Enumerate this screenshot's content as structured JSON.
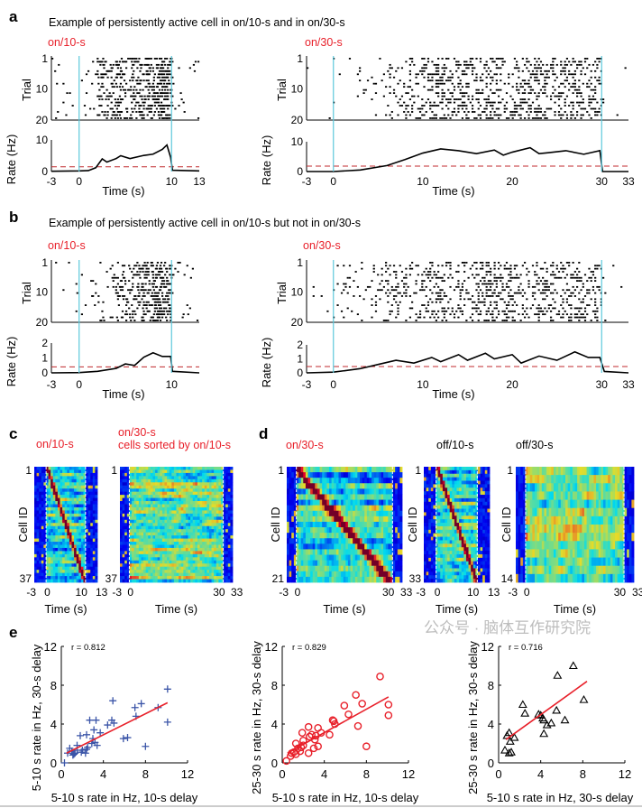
{
  "panel_a": {
    "label": "a",
    "title": "Example of persistently active cell in on/10-s and in on/30-s",
    "left_condition": "on/10-s",
    "right_condition": "on/30-s"
  },
  "panel_b": {
    "label": "b",
    "title": "Example of persistently active cell in on/10-s but not in on/30-s",
    "left_condition": "on/10-s",
    "right_condition": "on/30-s"
  },
  "panel_c": {
    "label": "c",
    "left_condition": "on/10-s",
    "right_condition_line1": "on/30-s",
    "right_condition_line2": "cells sorted by on/10-s"
  },
  "panel_d": {
    "label": "d",
    "cond1": "on/30-s",
    "cond2": "off/10-s",
    "cond3": "off/30-s"
  },
  "panel_e": {
    "label": "e"
  },
  "axis_text": {
    "trial": "Trial",
    "rate": "Rate (Hz)",
    "time": "Time (s)",
    "cell_id": "Cell ID"
  },
  "colors": {
    "event_line": "#5bc8dc",
    "threshold": "#c0282d",
    "condition_label": "#e8202a",
    "scatter1": "#3b55a8",
    "scatter2": "#e8202a",
    "scatter3": "#000000",
    "fit_line": "#e8202a"
  },
  "watermark": "公众号 · 脑体互作研究院",
  "chart_data": [
    {
      "id": "a-left",
      "type": "raster+line",
      "trial_ticks": [
        "1",
        "10",
        "20"
      ],
      "xticks": [
        "-3",
        "0",
        "10",
        "13"
      ],
      "xlim": [
        -3,
        13
      ],
      "ylim": [
        0,
        10
      ],
      "yticks": [
        "0",
        "10"
      ],
      "event_times": [
        0,
        10
      ],
      "threshold": 1.5,
      "rate": [
        [
          -3,
          0.1
        ],
        [
          0,
          0.2
        ],
        [
          1,
          0.3
        ],
        [
          1.8,
          1.2
        ],
        [
          2.5,
          4
        ],
        [
          3,
          3
        ],
        [
          4,
          4.1
        ],
        [
          4.5,
          5
        ],
        [
          5.5,
          4.1
        ],
        [
          7,
          5.1
        ],
        [
          8,
          5.5
        ],
        [
          9,
          7
        ],
        [
          9.5,
          8.4
        ],
        [
          9.9,
          4.5
        ],
        [
          10.1,
          0.4
        ],
        [
          13,
          0.2
        ]
      ]
    },
    {
      "id": "a-right",
      "type": "raster+line",
      "trial_ticks": [
        "1",
        "10",
        "20"
      ],
      "xticks": [
        "-3",
        "0",
        "10",
        "20",
        "30",
        "33"
      ],
      "xlim": [
        -3,
        33
      ],
      "ylim": [
        0,
        10
      ],
      "yticks": [
        "0",
        "10"
      ],
      "event_times": [
        0,
        30
      ],
      "threshold": 1.8,
      "rate": [
        [
          -3,
          0
        ],
        [
          0,
          0
        ],
        [
          3,
          0.5
        ],
        [
          6,
          2
        ],
        [
          8,
          4
        ],
        [
          10,
          6.2
        ],
        [
          12,
          7.6
        ],
        [
          14,
          7
        ],
        [
          16,
          6
        ],
        [
          18,
          7.2
        ],
        [
          19,
          5.5
        ],
        [
          20,
          6.5
        ],
        [
          22,
          8
        ],
        [
          23,
          6
        ],
        [
          24,
          6.3
        ],
        [
          26,
          7
        ],
        [
          28,
          5.8
        ],
        [
          29.8,
          7
        ],
        [
          30.1,
          0
        ],
        [
          33,
          0
        ]
      ]
    },
    {
      "id": "b-left",
      "type": "raster+line",
      "trial_ticks": [
        "1",
        "10",
        "20"
      ],
      "xticks": [
        "-3",
        "0",
        "10"
      ],
      "xlim": [
        -3,
        13
      ],
      "ylim": [
        0,
        2
      ],
      "yticks": [
        "0",
        "1",
        "2"
      ],
      "event_times": [
        0,
        10
      ],
      "threshold": 0.4,
      "rate": [
        [
          -3,
          0
        ],
        [
          0,
          0.02
        ],
        [
          2,
          0.1
        ],
        [
          4,
          0.3
        ],
        [
          5,
          0.6
        ],
        [
          6,
          0.5
        ],
        [
          7,
          1.05
        ],
        [
          8,
          1.35
        ],
        [
          9,
          1.1
        ],
        [
          9.9,
          1.1
        ],
        [
          10.1,
          0.1
        ],
        [
          13,
          0
        ]
      ]
    },
    {
      "id": "b-right",
      "type": "raster+line",
      "trial_ticks": [
        "1",
        "10",
        "20"
      ],
      "xticks": [
        "-3",
        "0",
        "10",
        "20",
        "30",
        "33"
      ],
      "xlim": [
        -3,
        33
      ],
      "ylim": [
        0,
        2
      ],
      "yticks": [
        "0",
        "1",
        "2"
      ],
      "event_times": [
        0,
        30
      ],
      "threshold": 0.45,
      "rate": [
        [
          -3,
          0
        ],
        [
          0,
          0.05
        ],
        [
          3,
          0.3
        ],
        [
          5,
          0.6
        ],
        [
          7,
          0.9
        ],
        [
          9,
          0.7
        ],
        [
          11,
          1.1
        ],
        [
          12,
          0.8
        ],
        [
          14,
          1.3
        ],
        [
          15,
          0.9
        ],
        [
          17,
          1.4
        ],
        [
          18,
          1.0
        ],
        [
          20,
          1.3
        ],
        [
          21,
          0.7
        ],
        [
          23,
          1.2
        ],
        [
          25,
          0.9
        ],
        [
          27,
          1.5
        ],
        [
          28.5,
          1.1
        ],
        [
          29.8,
          1.1
        ],
        [
          30.3,
          0.1
        ],
        [
          33,
          0
        ]
      ]
    },
    {
      "id": "c-left",
      "type": "heatmap",
      "cells": 37,
      "yticks": [
        "1",
        "37"
      ],
      "xticks": [
        "-3",
        "0",
        "10",
        "13"
      ],
      "xlim": [
        -3,
        13
      ]
    },
    {
      "id": "c-right",
      "type": "heatmap",
      "cells": 37,
      "yticks": [
        "1",
        "37"
      ],
      "xticks": [
        "-3",
        "0",
        "30",
        "33"
      ],
      "xlim": [
        -3,
        33
      ]
    },
    {
      "id": "d-1",
      "type": "heatmap",
      "cells": 21,
      "yticks": [
        "1",
        "21"
      ],
      "xticks": [
        "-3",
        "0",
        "30",
        "33"
      ],
      "xlim": [
        -3,
        33
      ]
    },
    {
      "id": "d-2",
      "type": "heatmap",
      "cells": 33,
      "yticks": [
        "1",
        "33"
      ],
      "xticks": [
        "-3",
        "0",
        "10",
        "13"
      ],
      "xlim": [
        -3,
        13
      ]
    },
    {
      "id": "d-3",
      "type": "heatmap",
      "cells": 14,
      "yticks": [
        "1",
        "14"
      ],
      "xticks": [
        "-3",
        "0",
        "30",
        "33"
      ],
      "xlim": [
        -3,
        33
      ]
    },
    {
      "id": "e-1",
      "type": "scatter",
      "marker": "plus",
      "r_text": "r = 0.812",
      "xlabel": "5-10 s rate in Hz, 10-s delay",
      "ylabel": "5-10 s rate in Hz, 30-s delay",
      "xlim": [
        0,
        12
      ],
      "ylim": [
        0,
        12
      ],
      "ticks": [
        "0",
        "4",
        "8",
        "12"
      ],
      "fit": [
        [
          0.5,
          1.0
        ],
        [
          10.1,
          6.2
        ]
      ],
      "points": [
        [
          0.3,
          0
        ],
        [
          0.6,
          1
        ],
        [
          0.8,
          1.5
        ],
        [
          1,
          1.2
        ],
        [
          1.1,
          0.8
        ],
        [
          1.2,
          0.9
        ],
        [
          1.3,
          1
        ],
        [
          1.5,
          1.3
        ],
        [
          1.5,
          1.8
        ],
        [
          1.8,
          2.8
        ],
        [
          1.9,
          1.1
        ],
        [
          2,
          1.3
        ],
        [
          2.3,
          1
        ],
        [
          2.4,
          2.9
        ],
        [
          2.4,
          1.4
        ],
        [
          2.5,
          1.6
        ],
        [
          2.7,
          4.4
        ],
        [
          2.9,
          2
        ],
        [
          3,
          2.5
        ],
        [
          3.1,
          3.4
        ],
        [
          3.2,
          2.1
        ],
        [
          3.3,
          4.4
        ],
        [
          3.4,
          1.8
        ],
        [
          3.7,
          3.1
        ],
        [
          4.4,
          3.9
        ],
        [
          4.8,
          4.4
        ],
        [
          4.9,
          6.4
        ],
        [
          5,
          4.1
        ],
        [
          5.9,
          2.5
        ],
        [
          6.3,
          2.6
        ],
        [
          7,
          5.7
        ],
        [
          7.1,
          4.8
        ],
        [
          7.6,
          6.1
        ],
        [
          8,
          1.7
        ],
        [
          9.2,
          5.7
        ],
        [
          10.1,
          7.6
        ],
        [
          10.1,
          4.2
        ]
      ]
    },
    {
      "id": "e-2",
      "type": "scatter",
      "marker": "circle",
      "r_text": "r = 0.829",
      "xlabel": "5-10 s rate in Hz, 10-s delay",
      "ylabel": "25-30 s rate in Hz, 30-s delay",
      "xlim": [
        0,
        12
      ],
      "ylim": [
        0,
        12
      ],
      "ticks": [
        "0",
        "4",
        "8",
        "12"
      ],
      "fit": [
        [
          0.5,
          1.0
        ],
        [
          10.1,
          6.8
        ]
      ],
      "points": [
        [
          0.4,
          0.2
        ],
        [
          0.8,
          0.7
        ],
        [
          0.9,
          1
        ],
        [
          1.1,
          1.1
        ],
        [
          1.3,
          0.9
        ],
        [
          1.3,
          2
        ],
        [
          1.5,
          1.5
        ],
        [
          1.7,
          1.2
        ],
        [
          1.8,
          1.6
        ],
        [
          1.9,
          3.1
        ],
        [
          2,
          2.3
        ],
        [
          2,
          1.8
        ],
        [
          2.5,
          1
        ],
        [
          2.5,
          3.7
        ],
        [
          2.6,
          2.7
        ],
        [
          2.8,
          2.9
        ],
        [
          3,
          1.5
        ],
        [
          3.1,
          2.4
        ],
        [
          3.2,
          2.8
        ],
        [
          3.4,
          1.7
        ],
        [
          3.4,
          3.6
        ],
        [
          3.7,
          3.1
        ],
        [
          4.5,
          2.9
        ],
        [
          4.8,
          4.4
        ],
        [
          4.9,
          4.3
        ],
        [
          5,
          4
        ],
        [
          5.9,
          5.9
        ],
        [
          6.3,
          5
        ],
        [
          7,
          7
        ],
        [
          7.2,
          3.8
        ],
        [
          7.6,
          6.1
        ],
        [
          8,
          1.7
        ],
        [
          9.3,
          8.9
        ],
        [
          10.1,
          6
        ],
        [
          10.1,
          4.9
        ]
      ]
    },
    {
      "id": "e-3",
      "type": "scatter",
      "marker": "triangle",
      "r_text": "r = 0.716",
      "xlabel": "5-10 s rate in Hz, 30-s delay",
      "ylabel": "25-30 s rate in Hz, 30-s delay",
      "xlim": [
        0,
        12
      ],
      "ylim": [
        0,
        12
      ],
      "ticks": [
        "0",
        "4",
        "8",
        "12"
      ],
      "fit": [
        [
          0.7,
          2.4
        ],
        [
          8.4,
          8.4
        ]
      ],
      "points": [
        [
          0.6,
          1.3
        ],
        [
          0.8,
          2.8
        ],
        [
          1,
          3.1
        ],
        [
          1,
          1
        ],
        [
          1.1,
          2.2
        ],
        [
          1.2,
          1.1
        ],
        [
          1.5,
          2.6
        ],
        [
          2.3,
          6
        ],
        [
          2.5,
          5.1
        ],
        [
          3.8,
          5
        ],
        [
          4,
          4.9
        ],
        [
          4.2,
          4.6
        ],
        [
          4.3,
          4.4
        ],
        [
          4.3,
          3
        ],
        [
          4.6,
          3.9
        ],
        [
          5,
          4.1
        ],
        [
          5.5,
          5.4
        ],
        [
          5.6,
          9
        ],
        [
          6.3,
          4.4
        ],
        [
          7.1,
          10
        ],
        [
          8.1,
          6.5
        ]
      ]
    }
  ]
}
